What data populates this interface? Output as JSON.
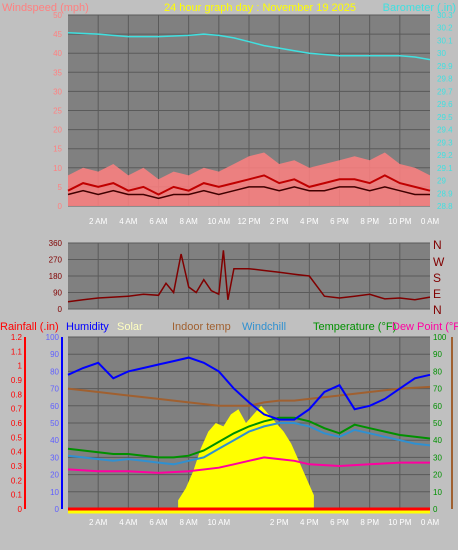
{
  "header": {
    "left_title": "Windspeed (mph)",
    "center_title": "24 hour graph day : November 19 2025",
    "right_title": "Barometer (.in)"
  },
  "colors": {
    "background": "#c0c0c0",
    "plot_bg": "#808080",
    "grid": "#5a5a5a",
    "wind_gust": "#ff8080",
    "wind_speed": "#c00000",
    "wind_avg": "#400000",
    "barometer": "#40e0e0",
    "direction": "#800000",
    "rain": "#ff0000",
    "humidity": "#0000ff",
    "solar": "#ffff00",
    "indoor": "#a06030",
    "windchill": "#3090d0",
    "temperature": "#009000",
    "dewpoint": "#ff00a0"
  },
  "x_ticks": [
    "2 AM",
    "4 AM",
    "6 AM",
    "8 AM",
    "10 AM",
    "12 PM",
    "2 PM",
    "4 PM",
    "6 PM",
    "8 PM",
    "10 PM",
    "0 AM"
  ],
  "x_ticks_bottom": [
    "2 AM",
    "4 AM",
    "6 AM",
    "8 AM",
    "10 AM",
    "",
    "2 PM",
    "4 PM",
    "6 PM",
    "8 PM",
    "10 PM",
    "0 AM"
  ],
  "chart_data": [
    {
      "type": "line",
      "title": "24 hour graph day : November 19 2025",
      "x_unit": "hours",
      "xlim": [
        0,
        24
      ],
      "left_axis": {
        "label": "Windspeed (mph)",
        "ylim": [
          0,
          50
        ],
        "ticks": [
          0,
          5,
          10,
          15,
          20,
          25,
          30,
          35,
          40,
          45,
          50
        ]
      },
      "right_axis": {
        "label": "Barometer (.in)",
        "ylim": [
          28.8,
          30.3
        ],
        "ticks": [
          "28.8",
          "28.9",
          "29",
          "29.1",
          "29.2",
          "29.3",
          "29.4",
          "29.5",
          "29.6",
          "29.7",
          "29.8",
          "29.9",
          "30",
          "30.1",
          "30.2",
          "30.3"
        ]
      },
      "series": [
        {
          "name": "Barometer",
          "axis": "right",
          "x": [
            0,
            2,
            4,
            6,
            8,
            9,
            10,
            11,
            12,
            13,
            14,
            15,
            16,
            17,
            18,
            19,
            20,
            21,
            22,
            23,
            24
          ],
          "values": [
            30.16,
            30.15,
            30.13,
            30.13,
            30.14,
            30.15,
            30.14,
            30.12,
            30.09,
            30.06,
            30.04,
            30.02,
            30.0,
            29.99,
            29.98,
            29.98,
            29.98,
            29.98,
            29.98,
            29.97,
            29.95
          ]
        },
        {
          "axis": "left",
          "x": [
            0,
            1,
            2,
            3,
            4,
            5,
            6,
            7,
            8,
            9,
            10,
            11,
            12,
            13,
            14,
            15,
            16,
            17,
            18,
            19,
            20,
            21,
            22,
            23,
            24
          ],
          "values": [
            8,
            10,
            9,
            11,
            8,
            10,
            7,
            9,
            8,
            10,
            9,
            11,
            13,
            14,
            11,
            12,
            10,
            11,
            12,
            13,
            12,
            14,
            11,
            10,
            8
          ]
        },
        {
          "axis": "left",
          "x": [
            0,
            1,
            2,
            3,
            4,
            5,
            6,
            7,
            8,
            9,
            10,
            11,
            12,
            13,
            14,
            15,
            16,
            17,
            18,
            19,
            20,
            21,
            22,
            23,
            24
          ],
          "values": [
            4,
            6,
            5,
            6,
            4,
            5,
            3,
            5,
            4,
            6,
            5,
            6,
            7,
            8,
            6,
            7,
            5,
            6,
            7,
            7,
            6,
            8,
            6,
            5,
            4
          ]
        },
        {
          "axis": "left",
          "x": [
            0,
            1,
            2,
            3,
            4,
            5,
            6,
            7,
            8,
            9,
            10,
            11,
            12,
            13,
            14,
            15,
            16,
            17,
            18,
            19,
            20,
            21,
            22,
            23,
            24
          ],
          "values": [
            3,
            4,
            3,
            4,
            3,
            3,
            2,
            3,
            3,
            4,
            3,
            4,
            5,
            5,
            4,
            5,
            4,
            4,
            5,
            5,
            4,
            5,
            4,
            3,
            3
          ]
        }
      ]
    },
    {
      "type": "line",
      "title": "",
      "x_unit": "hours",
      "xlim": [
        0,
        24
      ],
      "left_axis": {
        "ylim": [
          0,
          360
        ],
        "ticks": [
          0,
          90,
          180,
          270,
          360
        ]
      },
      "right_axis": {
        "labels": [
          "N",
          "W",
          "S",
          "E",
          "N"
        ]
      },
      "series": [
        {
          "name": "Wind direction",
          "x": [
            0,
            1,
            2,
            3,
            4,
            5,
            6,
            6.5,
            7,
            7.5,
            8,
            8.5,
            9,
            9.5,
            10,
            10.3,
            10.6,
            11,
            12,
            13,
            14,
            15,
            16,
            17,
            18,
            19,
            20,
            21,
            22,
            23,
            24
          ],
          "values": [
            40,
            50,
            60,
            65,
            70,
            80,
            75,
            140,
            90,
            300,
            120,
            90,
            160,
            100,
            80,
            320,
            50,
            220,
            220,
            210,
            200,
            190,
            180,
            70,
            60,
            70,
            80,
            55,
            60,
            50,
            65
          ]
        }
      ]
    },
    {
      "type": "line",
      "title": "",
      "x_unit": "hours",
      "xlim": [
        0,
        24
      ],
      "legend": [
        "Rainfall (.in)",
        "Humidity",
        "Solar",
        "Indoor temp",
        "Windchill",
        "Temperature (°F)",
        "Dew Point (°F)"
      ],
      "left_axis": {
        "label": "Rainfall (.in)",
        "ylim": [
          0,
          1.2
        ],
        "ticks": [
          "0",
          "0.1",
          "0.2",
          "0.3",
          "0.4",
          "0.5",
          "0.6",
          "0.7",
          "0.8",
          "0.9",
          "1",
          "1.1",
          "1.2"
        ]
      },
      "left_axis_2": {
        "label": "Humidity",
        "ylim": [
          0,
          100
        ],
        "ticks": [
          0,
          10,
          20,
          30,
          40,
          50,
          60,
          70,
          80,
          90,
          100
        ]
      },
      "right_axis": {
        "label": "Temperature (°F)",
        "ylim": [
          0,
          100
        ],
        "ticks": [
          0,
          10,
          20,
          30,
          40,
          50,
          60,
          70,
          80,
          90,
          100
        ]
      },
      "series": [
        {
          "name": "Humidity",
          "x": [
            0,
            1,
            2,
            3,
            4,
            5,
            6,
            7,
            8,
            9,
            10,
            11,
            12,
            13,
            14,
            15,
            16,
            17,
            18,
            19,
            20,
            21,
            22,
            23,
            24
          ],
          "values": [
            78,
            82,
            85,
            76,
            80,
            82,
            84,
            86,
            88,
            85,
            80,
            70,
            62,
            55,
            52,
            52,
            58,
            68,
            72,
            58,
            60,
            64,
            70,
            76,
            78
          ]
        },
        {
          "name": "Indoor temp",
          "x": [
            0,
            2,
            4,
            6,
            8,
            10,
            11,
            12,
            13,
            14,
            15,
            16,
            18,
            20,
            22,
            24
          ],
          "values": [
            70,
            68,
            66,
            64,
            62,
            60,
            60,
            60,
            62,
            63,
            63,
            64,
            66,
            68,
            70,
            71
          ]
        },
        {
          "name": "Windchill",
          "x": [
            0,
            1,
            2,
            3,
            4,
            5,
            6,
            7,
            8,
            9,
            10,
            11,
            12,
            13,
            14,
            15,
            16,
            17,
            18,
            19,
            20,
            21,
            22,
            23,
            24
          ],
          "values": [
            31,
            30,
            29,
            28,
            29,
            28,
            27,
            26,
            28,
            30,
            35,
            40,
            45,
            48,
            50,
            50,
            48,
            44,
            42,
            46,
            44,
            42,
            40,
            38,
            37
          ]
        },
        {
          "name": "Temperature (°F)",
          "x": [
            0,
            1,
            2,
            3,
            4,
            5,
            6,
            7,
            8,
            9,
            10,
            11,
            12,
            13,
            14,
            15,
            16,
            17,
            18,
            19,
            20,
            21,
            22,
            23,
            24
          ],
          "values": [
            35,
            34,
            33,
            32,
            32,
            31,
            30,
            30,
            31,
            34,
            39,
            44,
            48,
            51,
            53,
            53,
            51,
            47,
            44,
            49,
            47,
            45,
            43,
            42,
            41
          ]
        },
        {
          "name": "Dew Point (°F)",
          "x": [
            0,
            2,
            4,
            6,
            8,
            10,
            11,
            12,
            13,
            14,
            15,
            16,
            18,
            20,
            22,
            24
          ],
          "values": [
            23,
            22,
            22,
            21,
            22,
            24,
            26,
            28,
            30,
            29,
            28,
            26,
            25,
            26,
            27,
            27
          ]
        },
        {
          "name": "Solar",
          "x": [
            7.3,
            7.8,
            8.3,
            8.8,
            9.3,
            9.8,
            10.3,
            10.8,
            11.3,
            11.8,
            12.3,
            12.8,
            13.3,
            13.8,
            14.3,
            14.8,
            15.3,
            15.8,
            16.3
          ],
          "values": [
            5,
            12,
            22,
            35,
            45,
            50,
            48,
            55,
            58,
            50,
            55,
            60,
            55,
            50,
            45,
            38,
            28,
            18,
            8
          ]
        },
        {
          "name": "Rainfall (.in)",
          "x": [
            0,
            24
          ],
          "values": [
            0,
            0
          ]
        }
      ]
    }
  ]
}
